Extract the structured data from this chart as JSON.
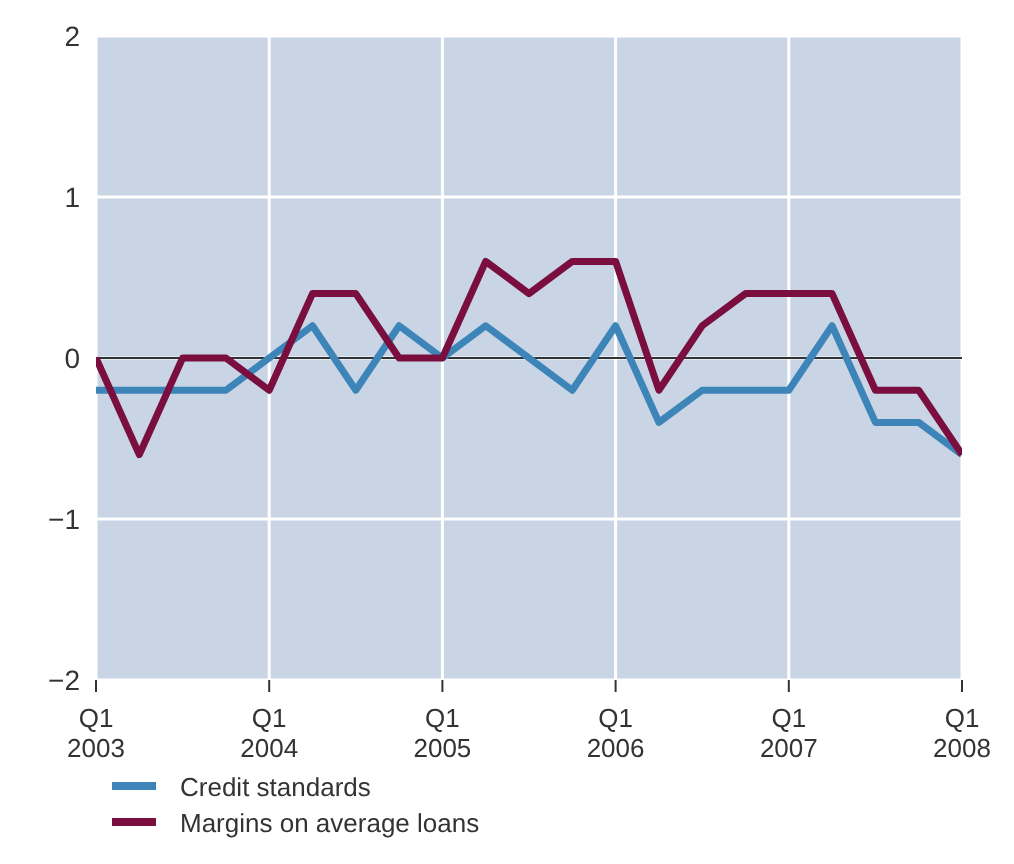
{
  "chart_data": {
    "type": "line",
    "categories": [
      "Q1\n2003",
      null,
      null,
      null,
      "Q1\n2004",
      null,
      null,
      null,
      "Q1\n2005",
      null,
      null,
      null,
      "Q1\n2006",
      null,
      null,
      null,
      "Q1\n2007",
      null,
      null,
      null,
      "Q1\n2008"
    ],
    "series": [
      {
        "name": "Credit standards",
        "color": "#3d85b8",
        "values": [
          -0.2,
          -0.2,
          -0.2,
          -0.2,
          0,
          0.2,
          -0.2,
          0.2,
          0,
          0.2,
          0,
          -0.2,
          0.2,
          -0.4,
          -0.2,
          -0.2,
          -0.2,
          0.2,
          -0.4,
          -0.4,
          -0.6
        ]
      },
      {
        "name": "Margins on average loans",
        "color": "#7a0f3f",
        "values": [
          0,
          -0.6,
          0,
          0,
          -0.2,
          0.4,
          0.4,
          0,
          0,
          0.6,
          0.4,
          0.6,
          0.6,
          -0.2,
          0.2,
          0.4,
          0.4,
          0.4,
          -0.2,
          -0.2,
          -0.6
        ]
      }
    ],
    "ylim": [
      -2,
      2
    ],
    "yticks": [
      {
        "value": -2,
        "label": "−2"
      },
      {
        "value": -1,
        "label": "−1"
      },
      0,
      1,
      2
    ],
    "ref_lines": [
      {
        "axis": "y",
        "value": 0,
        "color": "#333333"
      }
    ],
    "grid": true,
    "legend": "bottom left",
    "marker": "none",
    "line_style": "solid"
  }
}
